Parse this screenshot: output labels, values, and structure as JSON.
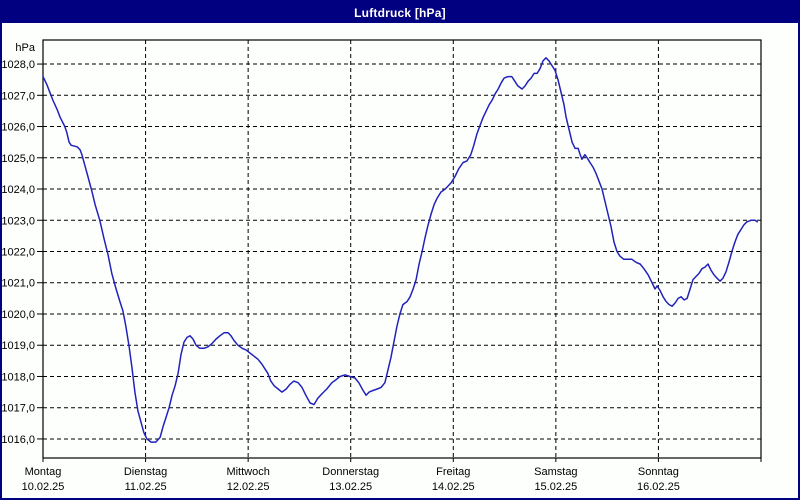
{
  "window": {
    "title": "Luftdruck [hPa]"
  },
  "colors": {
    "titlebar_bg": "#000080",
    "titlebar_text": "#ffffff",
    "window_border": "#000080",
    "background": "#fdfffd",
    "grid": "#000000",
    "axis": "#000000",
    "text": "#000000",
    "line": "#2222bb"
  },
  "y_axis": {
    "unit_label": "hPa",
    "tick_values": [
      1028,
      1027,
      1026,
      1025,
      1024,
      1023,
      1022,
      1021,
      1020,
      1019,
      1018,
      1017,
      1016
    ],
    "tick_labels": [
      "1028,0",
      "1027,0",
      "1026,0",
      "1025,0",
      "1024,0",
      "1023,0",
      "1022,0",
      "1021,0",
      "1020,0",
      "1019,0",
      "1018,0",
      "1017,0",
      "1016,0"
    ]
  },
  "x_axis": {
    "days": [
      {
        "name": "Montag",
        "date": "10.02.25"
      },
      {
        "name": "Dienstag",
        "date": "11.02.25"
      },
      {
        "name": "Mittwoch",
        "date": "12.02.25"
      },
      {
        "name": "Donnerstag",
        "date": "13.02.25"
      },
      {
        "name": "Freitag",
        "date": "14.02.25"
      },
      {
        "name": "Samstag",
        "date": "15.02.25"
      },
      {
        "name": "Sonntag",
        "date": "16.02.25"
      }
    ]
  },
  "chart_data": {
    "type": "line",
    "title": "Luftdruck [hPa]",
    "ylabel": "hPa",
    "x_unit": "hours since Montag 10.02.25 00:00",
    "xlim": [
      0,
      168
    ],
    "ylim": [
      1015.39,
      1028.77
    ],
    "grid": true,
    "legend": "none",
    "series": [
      {
        "name": "Luftdruck",
        "points": [
          [
            0,
            1027.6
          ],
          [
            0.9,
            1027.35
          ],
          [
            1.6,
            1027.1
          ],
          [
            2.3,
            1026.85
          ],
          [
            3.3,
            1026.55
          ],
          [
            4,
            1026.3
          ],
          [
            5.1,
            1026.0
          ],
          [
            5.6,
            1025.8
          ],
          [
            6.1,
            1025.5
          ],
          [
            6.6,
            1025.4
          ],
          [
            8,
            1025.35
          ],
          [
            8.7,
            1025.25
          ],
          [
            9.1,
            1025.1
          ],
          [
            9.8,
            1024.75
          ],
          [
            10.5,
            1024.4
          ],
          [
            11.5,
            1023.9
          ],
          [
            12.2,
            1023.5
          ],
          [
            13.3,
            1023.0
          ],
          [
            14.3,
            1022.4
          ],
          [
            15.2,
            1021.9
          ],
          [
            16.1,
            1021.3
          ],
          [
            17.1,
            1020.8
          ],
          [
            18,
            1020.4
          ],
          [
            18.7,
            1020.1
          ],
          [
            19.4,
            1019.6
          ],
          [
            20.1,
            1019.0
          ],
          [
            20.8,
            1018.3
          ],
          [
            21.5,
            1017.5
          ],
          [
            22.2,
            1016.9
          ],
          [
            22.9,
            1016.55
          ],
          [
            23.6,
            1016.2
          ],
          [
            24.3,
            1016.0
          ],
          [
            25.3,
            1015.9
          ],
          [
            26.4,
            1015.9
          ],
          [
            27.4,
            1016.05
          ],
          [
            28.1,
            1016.4
          ],
          [
            28.8,
            1016.7
          ],
          [
            29.5,
            1017.0
          ],
          [
            30.2,
            1017.4
          ],
          [
            30.9,
            1017.7
          ],
          [
            31.6,
            1018.1
          ],
          [
            32.3,
            1018.7
          ],
          [
            33,
            1019.1
          ],
          [
            33.7,
            1019.25
          ],
          [
            34.4,
            1019.3
          ],
          [
            35.1,
            1019.2
          ],
          [
            35.8,
            1019.0
          ],
          [
            36.7,
            1018.9
          ],
          [
            37.7,
            1018.9
          ],
          [
            38.6,
            1018.95
          ],
          [
            39.5,
            1019.05
          ],
          [
            40.5,
            1019.2
          ],
          [
            41.4,
            1019.3
          ],
          [
            42.4,
            1019.4
          ],
          [
            43.3,
            1019.4
          ],
          [
            44,
            1019.3
          ],
          [
            44.7,
            1019.15
          ],
          [
            45.6,
            1019.0
          ],
          [
            46.6,
            1018.9
          ],
          [
            47.5,
            1018.85
          ],
          [
            48.4,
            1018.75
          ],
          [
            49.4,
            1018.65
          ],
          [
            50.3,
            1018.55
          ],
          [
            51.2,
            1018.4
          ],
          [
            51.9,
            1018.25
          ],
          [
            52.6,
            1018.1
          ],
          [
            53.3,
            1017.85
          ],
          [
            54.1,
            1017.7
          ],
          [
            55,
            1017.6
          ],
          [
            55.9,
            1017.5
          ],
          [
            56.9,
            1017.6
          ],
          [
            57.8,
            1017.75
          ],
          [
            58.7,
            1017.85
          ],
          [
            59.7,
            1017.8
          ],
          [
            60.6,
            1017.65
          ],
          [
            61.5,
            1017.4
          ],
          [
            62.5,
            1017.15
          ],
          [
            63.4,
            1017.1
          ],
          [
            64.3,
            1017.3
          ],
          [
            65.3,
            1017.45
          ],
          [
            66.4,
            1017.6
          ],
          [
            67.6,
            1017.8
          ],
          [
            68.6,
            1017.9
          ],
          [
            69.5,
            1018.0
          ],
          [
            70.7,
            1018.05
          ],
          [
            71.8,
            1018.0
          ],
          [
            73,
            1017.95
          ],
          [
            73.9,
            1017.8
          ],
          [
            74.9,
            1017.55
          ],
          [
            75.6,
            1017.4
          ],
          [
            76.3,
            1017.5
          ],
          [
            77.2,
            1017.55
          ],
          [
            78.2,
            1017.6
          ],
          [
            79.1,
            1017.65
          ],
          [
            80,
            1017.8
          ],
          [
            80.7,
            1018.2
          ],
          [
            81.4,
            1018.6
          ],
          [
            82.1,
            1019.1
          ],
          [
            82.8,
            1019.6
          ],
          [
            83.5,
            1020.0
          ],
          [
            84.2,
            1020.3
          ],
          [
            85.2,
            1020.4
          ],
          [
            85.9,
            1020.55
          ],
          [
            86.6,
            1020.8
          ],
          [
            87.3,
            1021.1
          ],
          [
            88,
            1021.6
          ],
          [
            88.7,
            1022.0
          ],
          [
            89.4,
            1022.45
          ],
          [
            90.1,
            1022.85
          ],
          [
            90.8,
            1023.2
          ],
          [
            91.5,
            1023.5
          ],
          [
            92.2,
            1023.7
          ],
          [
            93.1,
            1023.9
          ],
          [
            94.1,
            1024.0
          ],
          [
            94.8,
            1024.1
          ],
          [
            95.5,
            1024.2
          ],
          [
            96.4,
            1024.4
          ],
          [
            97.3,
            1024.65
          ],
          [
            98.3,
            1024.85
          ],
          [
            99.2,
            1024.9
          ],
          [
            100.1,
            1025.1
          ],
          [
            100.8,
            1025.4
          ],
          [
            101.5,
            1025.75
          ],
          [
            102.3,
            1026.05
          ],
          [
            103,
            1026.3
          ],
          [
            103.7,
            1026.5
          ],
          [
            104.4,
            1026.7
          ],
          [
            105.1,
            1026.85
          ],
          [
            105.8,
            1027.05
          ],
          [
            106.5,
            1027.2
          ],
          [
            107.2,
            1027.4
          ],
          [
            107.9,
            1027.55
          ],
          [
            108.8,
            1027.6
          ],
          [
            109.7,
            1027.6
          ],
          [
            110.4,
            1027.45
          ],
          [
            111.1,
            1027.3
          ],
          [
            112.1,
            1027.2
          ],
          [
            112.8,
            1027.3
          ],
          [
            113.5,
            1027.45
          ],
          [
            114.2,
            1027.55
          ],
          [
            114.9,
            1027.7
          ],
          [
            115.6,
            1027.7
          ],
          [
            116.3,
            1027.85
          ],
          [
            117,
            1028.1
          ],
          [
            117.7,
            1028.2
          ],
          [
            118.4,
            1028.1
          ],
          [
            119.1,
            1027.95
          ],
          [
            119.8,
            1027.8
          ],
          [
            120.5,
            1027.5
          ],
          [
            121.2,
            1027.1
          ],
          [
            121.9,
            1026.7
          ],
          [
            122.4,
            1026.3
          ],
          [
            123.1,
            1025.9
          ],
          [
            123.8,
            1025.5
          ],
          [
            124.5,
            1025.3
          ],
          [
            125.2,
            1025.3
          ],
          [
            125.7,
            1025.1
          ],
          [
            126.1,
            1024.95
          ],
          [
            126.8,
            1025.1
          ],
          [
            127.3,
            1025.0
          ],
          [
            128,
            1024.85
          ],
          [
            128.7,
            1024.7
          ],
          [
            129.4,
            1024.5
          ],
          [
            130.1,
            1024.25
          ],
          [
            130.8,
            1024.0
          ],
          [
            131.5,
            1023.6
          ],
          [
            132.2,
            1023.2
          ],
          [
            132.9,
            1022.8
          ],
          [
            133.6,
            1022.3
          ],
          [
            134.3,
            1022.0
          ],
          [
            135,
            1021.85
          ],
          [
            135.9,
            1021.75
          ],
          [
            136.9,
            1021.75
          ],
          [
            137.8,
            1021.75
          ],
          [
            138.8,
            1021.65
          ],
          [
            139.7,
            1021.6
          ],
          [
            140.6,
            1021.45
          ],
          [
            141.6,
            1021.25
          ],
          [
            142.5,
            1021.0
          ],
          [
            143.2,
            1020.8
          ],
          [
            143.7,
            1020.9
          ],
          [
            144.4,
            1020.75
          ],
          [
            145.1,
            1020.55
          ],
          [
            145.8,
            1020.4
          ],
          [
            146.5,
            1020.3
          ],
          [
            147.2,
            1020.25
          ],
          [
            147.9,
            1020.35
          ],
          [
            148.6,
            1020.5
          ],
          [
            149.3,
            1020.55
          ],
          [
            150,
            1020.45
          ],
          [
            150.7,
            1020.5
          ],
          [
            151.4,
            1020.8
          ],
          [
            152.1,
            1021.1
          ],
          [
            152.8,
            1021.2
          ],
          [
            153.5,
            1021.3
          ],
          [
            154.2,
            1021.45
          ],
          [
            154.9,
            1021.5
          ],
          [
            155.6,
            1021.6
          ],
          [
            156.3,
            1021.4
          ],
          [
            157,
            1021.25
          ],
          [
            157.7,
            1021.15
          ],
          [
            158.4,
            1021.05
          ],
          [
            159.1,
            1021.15
          ],
          [
            159.8,
            1021.35
          ],
          [
            160.5,
            1021.65
          ],
          [
            161.2,
            1022.0
          ],
          [
            161.9,
            1022.3
          ],
          [
            162.6,
            1022.55
          ],
          [
            163.3,
            1022.7
          ],
          [
            164,
            1022.85
          ],
          [
            164.7,
            1022.95
          ],
          [
            165.7,
            1023.0
          ],
          [
            166.6,
            1023.0
          ],
          [
            167.1,
            1022.95
          ]
        ]
      }
    ]
  }
}
